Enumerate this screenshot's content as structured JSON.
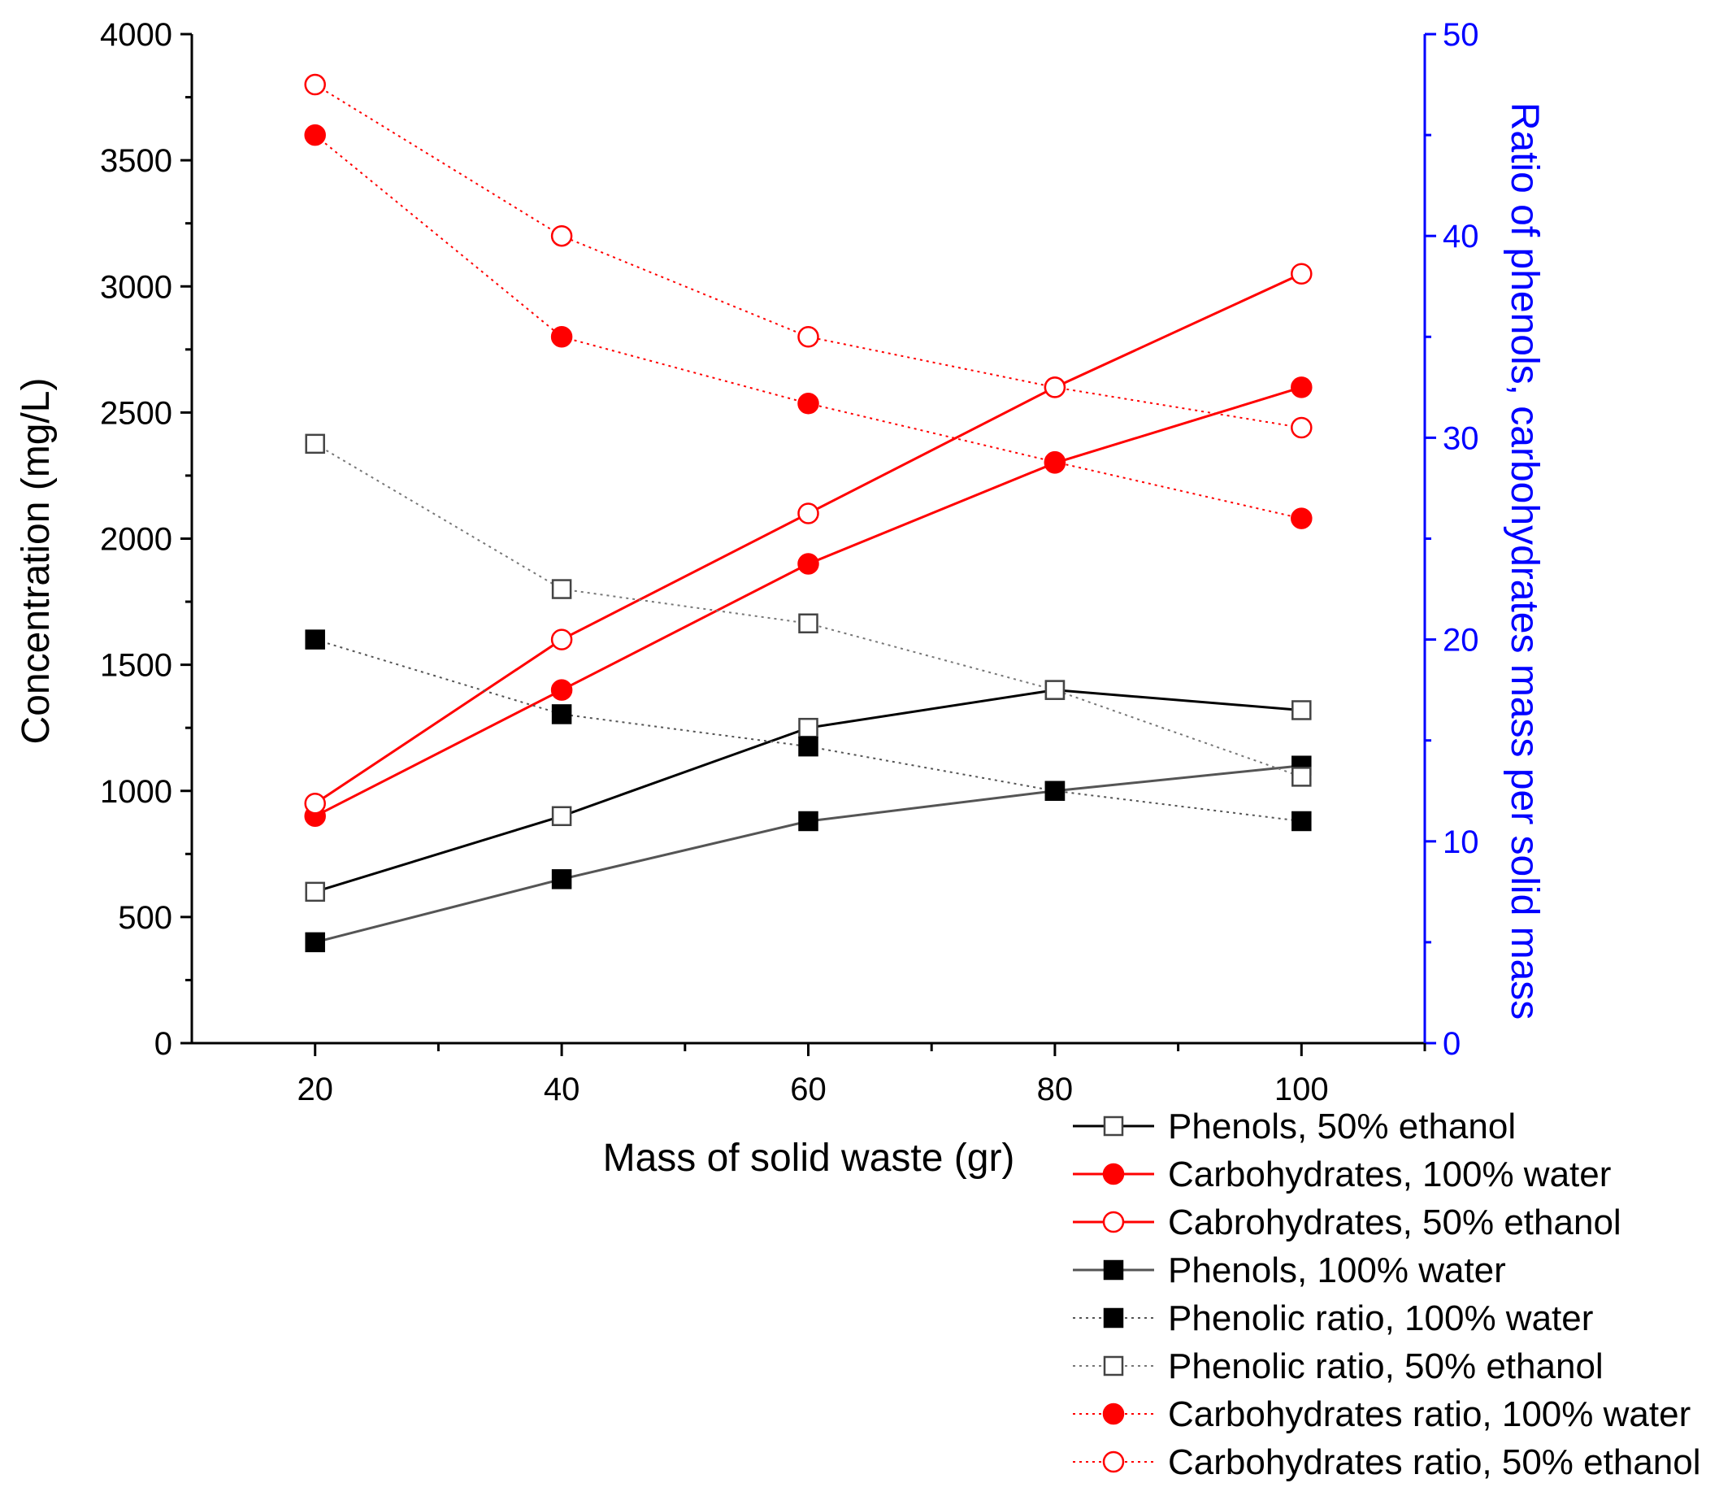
{
  "chart_data": {
    "type": "line",
    "title": "",
    "xlabel": "Mass of solid waste (gr)",
    "ylabel": "Concentration (mg/L)",
    "y2label": "Ratio of phenols, carbohydrates mass per solid mass",
    "xlim": [
      10,
      110
    ],
    "ylim": [
      0,
      4000
    ],
    "y2lim": [
      0,
      50
    ],
    "x_ticks": [
      20,
      40,
      60,
      80,
      100
    ],
    "y_ticks": [
      0,
      500,
      1000,
      1500,
      2000,
      2500,
      3000,
      3500,
      4000
    ],
    "y2_ticks": [
      0,
      10,
      20,
      30,
      40,
      50
    ],
    "legend_position": "bottom-right",
    "colors": {
      "black": "#000000",
      "red": "#ff0000",
      "gray": "#555555",
      "blue": "#0000ff"
    },
    "series": [
      {
        "name": "Phenols, 50% ethanol",
        "axis": "left",
        "marker": "square-open",
        "line": "solid",
        "color": "#000000",
        "x": [
          20,
          40,
          60,
          80,
          100
        ],
        "y": [
          600,
          900,
          1250,
          1400,
          1320
        ]
      },
      {
        "name": "Carbohydrates, 100% water",
        "axis": "left",
        "marker": "circle-filled",
        "line": "solid",
        "color": "#ff0000",
        "x": [
          20,
          40,
          60,
          80,
          100
        ],
        "y": [
          900,
          1400,
          1900,
          2300,
          2600
        ]
      },
      {
        "name": "Cabrohydrates, 50% ethanol",
        "axis": "left",
        "marker": "circle-open",
        "line": "solid",
        "color": "#ff0000",
        "x": [
          20,
          40,
          60,
          80,
          100
        ],
        "y": [
          950,
          1600,
          2100,
          2600,
          3050
        ]
      },
      {
        "name": "Phenols, 100% water",
        "axis": "left",
        "marker": "square-filled",
        "line": "solid",
        "color": "#555555",
        "x": [
          20,
          40,
          60,
          80,
          100
        ],
        "y": [
          400,
          650,
          880,
          1000,
          1100
        ]
      },
      {
        "name": "Phenolic ratio, 100% water",
        "axis": "right",
        "marker": "square-filled",
        "line": "dotted",
        "color": "#555555",
        "x": [
          20,
          40,
          60,
          80,
          100
        ],
        "y": [
          20,
          16.3,
          14.7,
          12.5,
          11
        ]
      },
      {
        "name": "Phenolic ratio, 50% ethanol",
        "axis": "right",
        "marker": "square-open",
        "line": "dotted",
        "color": "#777777",
        "x": [
          20,
          40,
          60,
          80,
          100
        ],
        "y": [
          29.7,
          22.5,
          20.8,
          17.5,
          13.2
        ]
      },
      {
        "name": "Carbohydrates ratio, 100% water",
        "axis": "right",
        "marker": "circle-filled",
        "line": "dotted",
        "color": "#ff0000",
        "x": [
          20,
          40,
          60,
          80,
          100
        ],
        "y": [
          45,
          35,
          31.7,
          28.8,
          26
        ]
      },
      {
        "name": "Carbohydrates ratio, 50% ethanol",
        "axis": "right",
        "marker": "circle-open",
        "line": "dotted",
        "color": "#ff0000",
        "x": [
          20,
          40,
          60,
          80,
          100
        ],
        "y": [
          47.5,
          40,
          35,
          32.5,
          30.5
        ]
      }
    ]
  }
}
